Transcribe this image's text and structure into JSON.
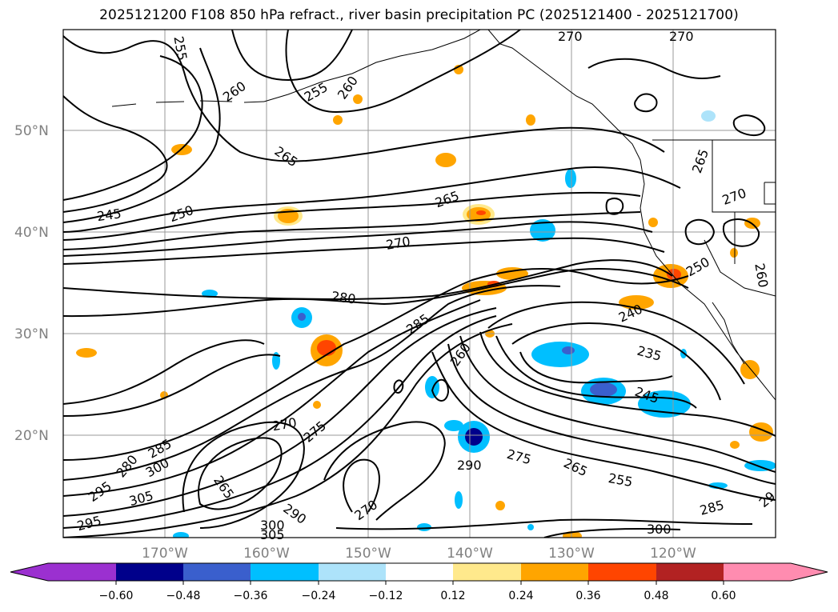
{
  "title": "2025121200 F108 850 hPa refract., river basin precipitation PC (2025121400 - 2025121700)",
  "colors": {
    "contour": "#000000",
    "grid": "#999999",
    "axis_label": "#808080"
  },
  "axes": {
    "lat_labels": [
      "50°N",
      "40°N",
      "30°N",
      "20°N"
    ],
    "lon_labels": [
      "170°W",
      "160°W",
      "150°W",
      "140°W",
      "130°W",
      "120°W"
    ]
  },
  "contour_labels": [
    "255",
    "260",
    "255",
    "260",
    "270",
    "270",
    "265",
    "265",
    "265",
    "270",
    "245",
    "250",
    "270",
    "250",
    "260",
    "280",
    "285",
    "240",
    "235",
    "260",
    "245",
    "270",
    "275",
    "285",
    "280",
    "300",
    "295",
    "305",
    "265",
    "290",
    "275",
    "265",
    "255",
    "270",
    "290",
    "300",
    "305",
    "300",
    "285",
    "29"
  ],
  "colorbar": {
    "ticks": [
      "−0.60",
      "−0.48",
      "−0.36",
      "−0.24",
      "−0.12",
      "0.12",
      "0.24",
      "0.36",
      "0.48",
      "0.60"
    ],
    "bins": [
      {
        "color": "#9b30d0"
      },
      {
        "color": "#00008b"
      },
      {
        "color": "#3a5fcd"
      },
      {
        "color": "#00bfff"
      },
      {
        "color": "#ade3fa"
      },
      {
        "color": "#ffffff"
      },
      {
        "color": "#ffe98c"
      },
      {
        "color": "#ffa500"
      },
      {
        "color": "#ff4500"
      },
      {
        "color": "#b22222"
      },
      {
        "color": "#ff8cb0"
      }
    ]
  }
}
